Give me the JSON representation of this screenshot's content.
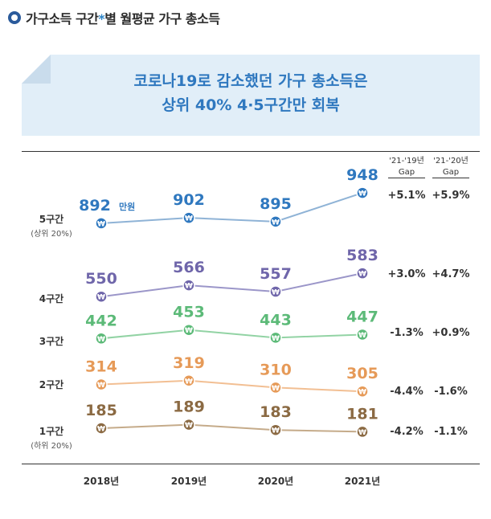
{
  "header": {
    "title_main": "가구소득 구간",
    "title_star": "*",
    "title_rest": "별 월평균 가구 총소득"
  },
  "banner": {
    "line1": "코로나19로 감소했던 가구 총소득은",
    "line2": "상위 40% 4·5구간만 회복"
  },
  "gap_headers": [
    {
      "line1": "'21-'19년",
      "line2": "Gap"
    },
    {
      "line1": "'21-'20년",
      "line2": "Gap"
    }
  ],
  "unit_label": "만원",
  "chart_data": {
    "type": "line",
    "x": [
      "2018년",
      "2019년",
      "2020년",
      "2021년"
    ],
    "series": [
      {
        "name": "5구간",
        "sub": "(상위 20%)",
        "color": "#8fb3d6",
        "dot": "#2f78bf",
        "text": "#2f78bf",
        "values": [
          892,
          902,
          895,
          948
        ],
        "gap_19": "+5.1%",
        "gap_20": "+5.9%"
      },
      {
        "name": "4구간",
        "sub": "",
        "color": "#9b96c9",
        "dot": "#6f66aa",
        "text": "#6f66aa",
        "values": [
          550,
          566,
          557,
          583
        ],
        "gap_19": "+3.0%",
        "gap_20": "+4.7%"
      },
      {
        "name": "3구간",
        "sub": "",
        "color": "#92d3a4",
        "dot": "#5cba78",
        "text": "#5cba78",
        "values": [
          442,
          453,
          443,
          447
        ],
        "gap_19": "-1.3%",
        "gap_20": "+0.9%"
      },
      {
        "name": "2구간",
        "sub": "",
        "color": "#f2bf93",
        "dot": "#e69a58",
        "text": "#e69a58",
        "values": [
          314,
          319,
          310,
          305
        ],
        "gap_19": "-4.4%",
        "gap_20": "-1.6%"
      },
      {
        "name": "1구간",
        "sub": "(하위 20%)",
        "color": "#c5ab8a",
        "dot": "#8b6a43",
        "text": "#8b6a43",
        "values": [
          185,
          189,
          183,
          181
        ],
        "gap_19": "-4.2%",
        "gap_20": "-1.1%"
      }
    ]
  }
}
